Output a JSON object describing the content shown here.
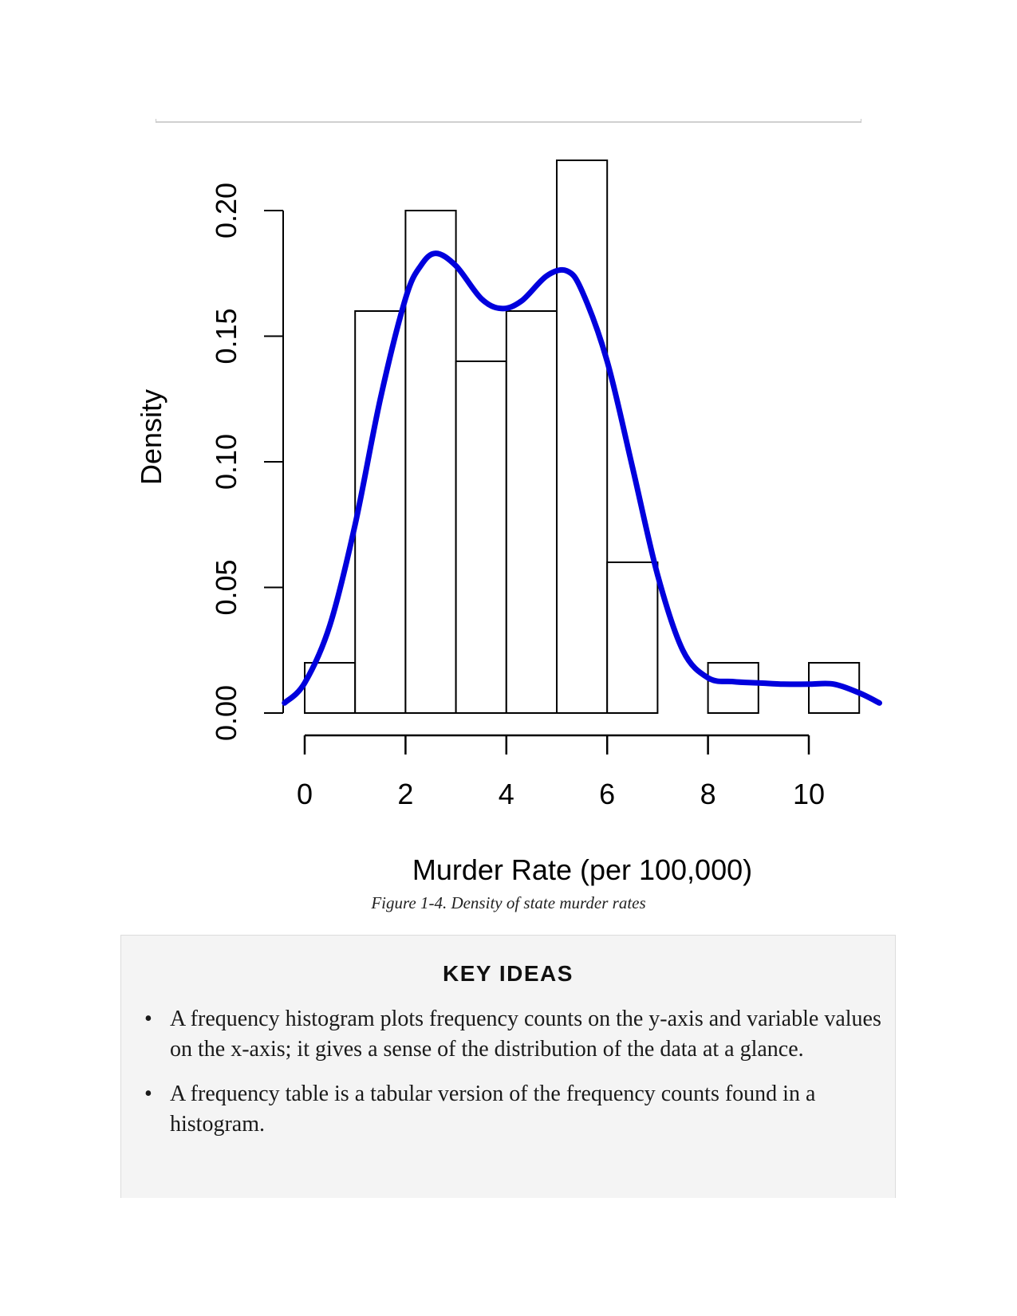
{
  "chart_data": {
    "type": "histogram",
    "title": "",
    "xlabel": "Murder Rate (per 100,000)",
    "ylabel": "Density",
    "xlim": [
      0,
      11
    ],
    "ylim": [
      0,
      0.2
    ],
    "x_ticks": [
      0,
      2,
      4,
      6,
      8,
      10
    ],
    "y_ticks": [
      0.0,
      0.05,
      0.1,
      0.15,
      0.2
    ],
    "x_tick_labels": [
      "0",
      "2",
      "4",
      "6",
      "8",
      "10"
    ],
    "y_tick_labels": [
      "0.00",
      "0.05",
      "0.10",
      "0.15",
      "0.20"
    ],
    "bins": [
      {
        "x0": 0,
        "x1": 1,
        "density": 0.02
      },
      {
        "x0": 1,
        "x1": 2,
        "density": 0.16
      },
      {
        "x0": 2,
        "x1": 3,
        "density": 0.2
      },
      {
        "x0": 3,
        "x1": 4,
        "density": 0.14
      },
      {
        "x0": 4,
        "x1": 5,
        "density": 0.16
      },
      {
        "x0": 5,
        "x1": 6,
        "density": 0.22
      },
      {
        "x0": 6,
        "x1": 7,
        "density": 0.06
      },
      {
        "x0": 7,
        "x1": 8,
        "density": 0.0
      },
      {
        "x0": 8,
        "x1": 9,
        "density": 0.02
      },
      {
        "x0": 9,
        "x1": 10,
        "density": 0.0
      },
      {
        "x0": 10,
        "x1": 11,
        "density": 0.02
      }
    ],
    "density_curve": {
      "color": "#0000dd",
      "x": [
        -0.4,
        0,
        0.5,
        1,
        1.5,
        2,
        2.3,
        2.6,
        3,
        3.5,
        3.9,
        4.3,
        4.8,
        5.2,
        5.5,
        6,
        6.5,
        7,
        7.5,
        8,
        8.5,
        9,
        9.5,
        10,
        10.5,
        11,
        11.4
      ],
      "y": [
        0.004,
        0.012,
        0.035,
        0.075,
        0.125,
        0.165,
        0.178,
        0.183,
        0.178,
        0.165,
        0.161,
        0.164,
        0.174,
        0.176,
        0.168,
        0.14,
        0.098,
        0.055,
        0.025,
        0.014,
        0.0125,
        0.012,
        0.0115,
        0.0115,
        0.0115,
        0.008,
        0.004
      ]
    }
  },
  "caption": "Figure 1-4. Density of state murder rates",
  "key_ideas": {
    "title": "KEY IDEAS",
    "items": [
      "A frequency histogram plots frequency counts on the y-axis and variable values on the x-axis; it gives a sense of the distribution of the data at a glance.",
      "A frequency table is a tabular version of the frequency counts found in a histogram."
    ]
  }
}
